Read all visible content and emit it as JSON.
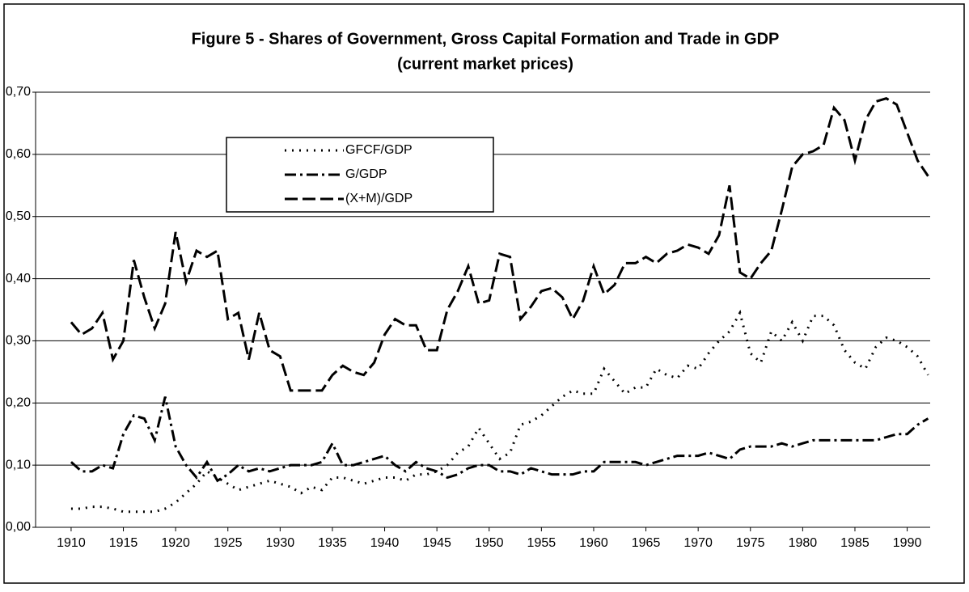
{
  "chart_data": {
    "type": "line",
    "title": "Figure 5 - Shares of Government, Gross Capital Formation and Trade in GDP",
    "subtitle": "(current market prices)",
    "x": [
      1910,
      1911,
      1912,
      1913,
      1914,
      1915,
      1916,
      1917,
      1918,
      1919,
      1920,
      1921,
      1922,
      1923,
      1924,
      1925,
      1926,
      1927,
      1928,
      1929,
      1930,
      1931,
      1932,
      1933,
      1934,
      1935,
      1936,
      1937,
      1938,
      1939,
      1940,
      1941,
      1942,
      1943,
      1944,
      1945,
      1946,
      1947,
      1948,
      1949,
      1950,
      1951,
      1952,
      1953,
      1954,
      1955,
      1956,
      1957,
      1958,
      1959,
      1960,
      1961,
      1962,
      1963,
      1964,
      1965,
      1966,
      1967,
      1968,
      1969,
      1970,
      1971,
      1972,
      1973,
      1974,
      1975,
      1976,
      1977,
      1978,
      1979,
      1980,
      1981,
      1982,
      1983,
      1984,
      1985,
      1986,
      1987,
      1988,
      1989,
      1990,
      1991,
      1992
    ],
    "series": [
      {
        "name": "GFCF/GDP",
        "color": "#000000",
        "dash": "2,7",
        "values": [
          0.03,
          0.03,
          0.033,
          0.033,
          0.03,
          0.025,
          0.025,
          0.025,
          0.025,
          0.03,
          0.04,
          0.055,
          0.07,
          0.09,
          0.08,
          0.07,
          0.06,
          0.065,
          0.07,
          0.075,
          0.07,
          0.065,
          0.055,
          0.065,
          0.06,
          0.08,
          0.08,
          0.075,
          0.07,
          0.075,
          0.08,
          0.08,
          0.075,
          0.085,
          0.085,
          0.09,
          0.1,
          0.12,
          0.13,
          0.16,
          0.135,
          0.11,
          0.12,
          0.165,
          0.17,
          0.18,
          0.195,
          0.21,
          0.22,
          0.215,
          0.215,
          0.255,
          0.235,
          0.215,
          0.225,
          0.225,
          0.255,
          0.245,
          0.24,
          0.26,
          0.255,
          0.28,
          0.3,
          0.315,
          0.345,
          0.28,
          0.265,
          0.315,
          0.3,
          0.33,
          0.3,
          0.34,
          0.34,
          0.325,
          0.285,
          0.265,
          0.255,
          0.29,
          0.305,
          0.3,
          0.29,
          0.275,
          0.245
        ]
      },
      {
        "name": "G/GDP",
        "color": "#000000",
        "dash": "14,5,3,5",
        "values": [
          0.105,
          0.09,
          0.09,
          0.1,
          0.095,
          0.15,
          0.18,
          0.175,
          0.14,
          0.21,
          0.13,
          0.1,
          0.08,
          0.105,
          0.075,
          0.085,
          0.1,
          0.09,
          0.095,
          0.09,
          0.095,
          0.1,
          0.1,
          0.1,
          0.105,
          0.135,
          0.1,
          0.1,
          0.105,
          0.11,
          0.115,
          0.1,
          0.09,
          0.105,
          0.095,
          0.09,
          0.08,
          0.085,
          0.095,
          0.1,
          0.1,
          0.09,
          0.09,
          0.085,
          0.095,
          0.09,
          0.085,
          0.085,
          0.085,
          0.09,
          0.09,
          0.105,
          0.105,
          0.105,
          0.105,
          0.1,
          0.105,
          0.11,
          0.115,
          0.115,
          0.115,
          0.12,
          0.115,
          0.11,
          0.125,
          0.13,
          0.13,
          0.13,
          0.135,
          0.13,
          0.135,
          0.14,
          0.14,
          0.14,
          0.14,
          0.14,
          0.14,
          0.14,
          0.145,
          0.15,
          0.15,
          0.165,
          0.175
        ]
      },
      {
        "name": "(X+M)/GDP",
        "color": "#000000",
        "dash": "16,6",
        "values": [
          0.33,
          0.31,
          0.32,
          0.345,
          0.27,
          0.3,
          0.43,
          0.37,
          0.32,
          0.36,
          0.475,
          0.395,
          0.445,
          0.435,
          0.445,
          0.335,
          0.345,
          0.27,
          0.345,
          0.285,
          0.275,
          0.22,
          0.22,
          0.22,
          0.22,
          0.245,
          0.26,
          0.25,
          0.245,
          0.265,
          0.31,
          0.335,
          0.325,
          0.325,
          0.285,
          0.285,
          0.35,
          0.38,
          0.42,
          0.36,
          0.365,
          0.44,
          0.435,
          0.335,
          0.355,
          0.38,
          0.385,
          0.37,
          0.335,
          0.365,
          0.42,
          0.375,
          0.39,
          0.425,
          0.425,
          0.435,
          0.425,
          0.44,
          0.445,
          0.455,
          0.45,
          0.44,
          0.47,
          0.55,
          0.41,
          0.4,
          0.425,
          0.445,
          0.51,
          0.58,
          0.6,
          0.605,
          0.615,
          0.675,
          0.655,
          0.59,
          0.655,
          0.685,
          0.69,
          0.68,
          0.635,
          0.59,
          0.565
        ]
      }
    ],
    "xlim": [
      1906.6,
      1992.2
    ],
    "xticks": [
      1910,
      1915,
      1920,
      1925,
      1930,
      1935,
      1940,
      1945,
      1950,
      1955,
      1960,
      1965,
      1970,
      1975,
      1980,
      1985,
      1990
    ],
    "ylim": [
      0,
      0.7
    ],
    "yticks": [
      {
        "value": 0,
        "label": "0,00"
      },
      {
        "value": 0.1,
        "label": "0,10"
      },
      {
        "value": 0.2,
        "label": "0,20"
      },
      {
        "value": 0.3,
        "label": "0,30"
      },
      {
        "value": 0.4,
        "label": "0,40"
      },
      {
        "value": 0.5,
        "label": "0,50"
      },
      {
        "value": 0.6,
        "label": "0,60"
      },
      {
        "value": 0.7,
        "label": "0,70"
      }
    ],
    "grid": true
  }
}
